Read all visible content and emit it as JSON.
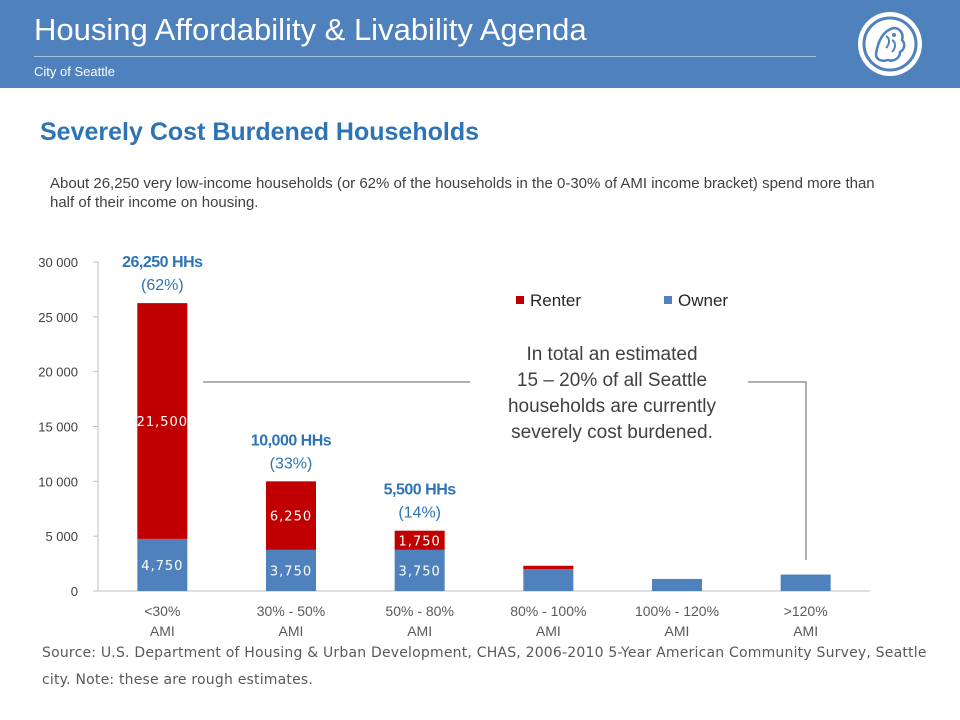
{
  "header": {
    "title": "Housing Affordability & Livability Agenda",
    "subtitle": "City of Seattle",
    "logo_icon": "seattle-seal-icon"
  },
  "slide": {
    "title": "Severely Cost Burdened Households",
    "intro": "About 26,250 very low-income households (or 62% of the households in the 0-30% of AMI income bracket) spend more than half of their income on housing.",
    "source": "Source: U.S. Department of Housing & Urban Development, CHAS, 2006-2010 5-Year American Community Survey, Seattle city.  Note: these are rough estimates."
  },
  "colors": {
    "renter": "#c00000",
    "owner": "#4f81bd",
    "header": "#4f81bd",
    "title": "#2e74b5"
  },
  "chart_data": {
    "type": "bar",
    "stacked": true,
    "categories": [
      [
        "<30%",
        "AMI"
      ],
      [
        "30% - 50%",
        "AMI"
      ],
      [
        "50% - 80%",
        "AMI"
      ],
      [
        "80% - 100%",
        "AMI"
      ],
      [
        "100% - 120%",
        "AMI"
      ],
      [
        ">120%",
        "AMI"
      ]
    ],
    "series": [
      {
        "name": "Owner",
        "values": [
          4750,
          3750,
          3750,
          2000,
          1100,
          1500
        ],
        "labels": [
          "4,750",
          "3,750",
          "3,750",
          "",
          "",
          ""
        ]
      },
      {
        "name": "Renter",
        "values": [
          21500,
          6250,
          1750,
          300,
          0,
          0
        ],
        "labels": [
          "21,500",
          "6,250",
          "1,750",
          "",
          "",
          ""
        ]
      }
    ],
    "ylim": [
      0,
      30000
    ],
    "yticks": [
      0,
      5000,
      10000,
      15000,
      20000,
      25000,
      30000
    ],
    "ytick_labels": [
      "0",
      "5 000",
      "10 000",
      "15 000",
      "20 000",
      "25 000",
      "30 000"
    ],
    "legend": {
      "position": "top-right",
      "order": [
        "Renter",
        "Owner"
      ]
    },
    "bar_totals": [
      [
        "26,250 HHs",
        "(62%)"
      ],
      [
        "10,000 HHs",
        "(33%)"
      ],
      [
        "5,500 HHs",
        "(14%)"
      ],
      [
        "",
        ""
      ],
      [
        "",
        ""
      ],
      [
        "",
        ""
      ]
    ],
    "annotation": [
      "In total an estimated",
      "15 – 20% of all Seattle",
      "households are currently",
      "severely cost burdened."
    ],
    "grid": false
  }
}
